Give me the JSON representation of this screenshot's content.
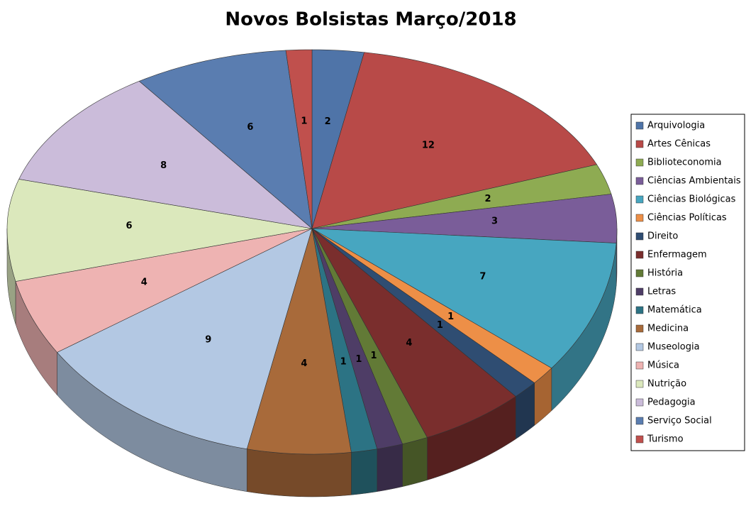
{
  "chart_data": {
    "type": "pie",
    "title": "Novos Bolsistas Março/2018",
    "categories": [
      "Arquivologia",
      "Artes Cênicas",
      "Biblioteconomia",
      "Ciências Ambientais",
      "Ciências Biológicas",
      "Ciências Políticas",
      "Direito",
      "Enfermagem",
      "História",
      "Letras",
      "Matemática",
      "Medicina",
      "Museologia",
      "Música",
      "Nutrição",
      "Pedagogia",
      "Serviço Social",
      "Turismo"
    ],
    "values": [
      2,
      12,
      2,
      3,
      7,
      1,
      1,
      4,
      1,
      1,
      1,
      4,
      9,
      4,
      6,
      8,
      6,
      1
    ],
    "colors": [
      "#4f74a8",
      "#b84a48",
      "#8eab52",
      "#7a5d99",
      "#47a6c0",
      "#ed8f47",
      "#2f4d72",
      "#7a2e2d",
      "#627a36",
      "#4e3d66",
      "#2c7384",
      "#a86a3a",
      "#b3c8e3",
      "#eeb3b2",
      "#dbe8bc",
      "#cbbcda",
      "#5a7db0",
      "#c0504d"
    ],
    "legend": "right"
  }
}
